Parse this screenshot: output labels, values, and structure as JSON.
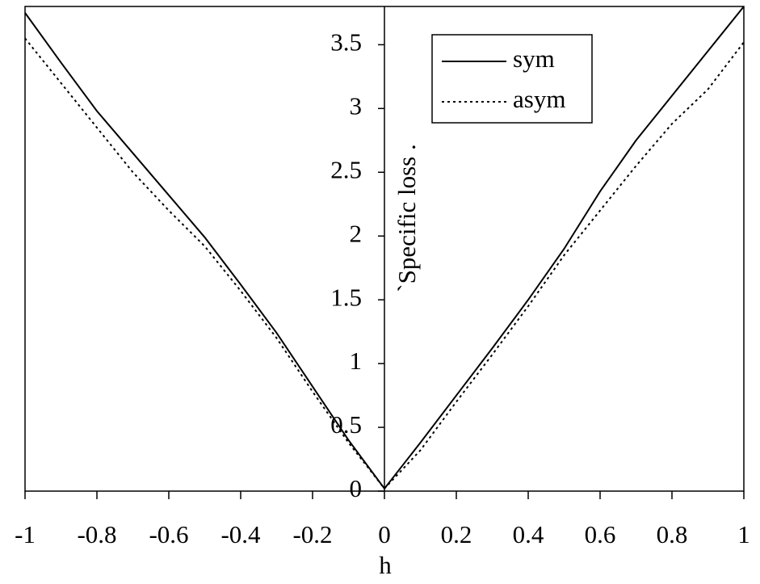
{
  "chart_data": {
    "type": "line",
    "x_label": "h",
    "y_label": "`Specific loss .",
    "x": [
      -1,
      -0.9,
      -0.8,
      -0.7,
      -0.6,
      -0.5,
      -0.4,
      -0.3,
      -0.2,
      -0.1,
      0,
      0.1,
      0.2,
      0.3,
      0.4,
      0.5,
      0.6,
      0.7,
      0.8,
      0.9,
      1
    ],
    "series": [
      {
        "name": "sym",
        "color": "#000000",
        "dash": "solid",
        "values": [
          3.75,
          3.36,
          2.98,
          2.65,
          2.32,
          1.99,
          1.62,
          1.24,
          0.82,
          0.4,
          0.02,
          0.38,
          0.75,
          1.12,
          1.5,
          1.9,
          2.35,
          2.75,
          3.1,
          3.45,
          3.8
        ]
      },
      {
        "name": "asym",
        "color": "#000000",
        "dash": "dotted",
        "values": [
          3.55,
          3.2,
          2.85,
          2.5,
          2.2,
          1.92,
          1.57,
          1.2,
          0.78,
          0.38,
          0.02,
          0.32,
          0.7,
          1.07,
          1.45,
          1.85,
          2.2,
          2.55,
          2.88,
          3.15,
          3.52
        ]
      }
    ],
    "xlim": [
      -1,
      1
    ],
    "ylim": [
      0,
      3.8
    ],
    "xticks": [
      -1,
      -0.8,
      -0.6,
      -0.4,
      -0.2,
      0,
      0.2,
      0.4,
      0.6,
      0.8,
      1
    ],
    "yticks": [
      0,
      0.5,
      1,
      1.5,
      2,
      2.5,
      3,
      3.5
    ],
    "legend": "top-right",
    "grid": false
  }
}
